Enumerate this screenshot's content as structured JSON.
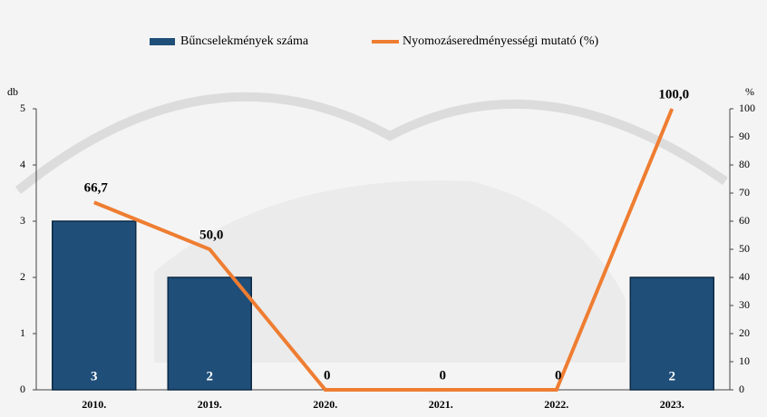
{
  "chart_data": {
    "type": "bar-line",
    "categories": [
      "2010.",
      "2019.",
      "2020.",
      "2021.",
      "2022.",
      "2023."
    ],
    "series": [
      {
        "name": "Bűncselekmények száma",
        "color": "#1f4e79",
        "type": "bar",
        "values": [
          3,
          2,
          0,
          0,
          0,
          2
        ]
      },
      {
        "name": "Nyomozáseredményességi mutató (%)",
        "color": "#ef7d31",
        "type": "line",
        "axis": "y2",
        "values": [
          66.7,
          50.0,
          0,
          0,
          0,
          100.0
        ],
        "value_labels": [
          "66,7",
          "50,0",
          "0",
          "0",
          "0",
          "100,0"
        ]
      }
    ],
    "ylabel": "db",
    "y2label": "%",
    "ylim": [
      0,
      5
    ],
    "yticks": [
      0,
      1,
      2,
      3,
      4,
      5
    ],
    "y2lim": [
      0,
      100
    ],
    "y2ticks": [
      0,
      10,
      20,
      30,
      40,
      50,
      60,
      70,
      80,
      90,
      100
    ],
    "legend": "top"
  }
}
